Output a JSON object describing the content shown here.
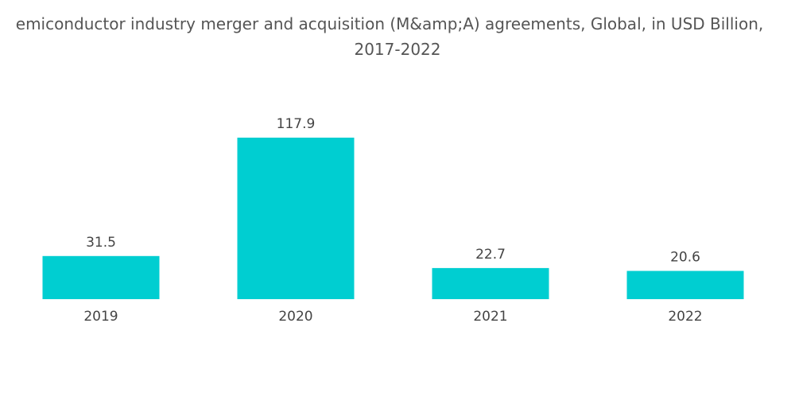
{
  "chart_data": {
    "type": "bar",
    "title_line1": "emiconductor industry merger and acquisition (M&amp;A) agreements, Global, in USD Billion,",
    "title_line2": "2017-2022",
    "categories": [
      "2019",
      "2020",
      "2021",
      "2022"
    ],
    "values": [
      31.5,
      117.9,
      22.7,
      20.6
    ],
    "value_labels": [
      "31.5",
      "117.9",
      "22.7",
      "20.6"
    ],
    "ylim": [
      0,
      117.9
    ],
    "grid": false,
    "legend": "none",
    "bar_color": "#00CED1"
  }
}
